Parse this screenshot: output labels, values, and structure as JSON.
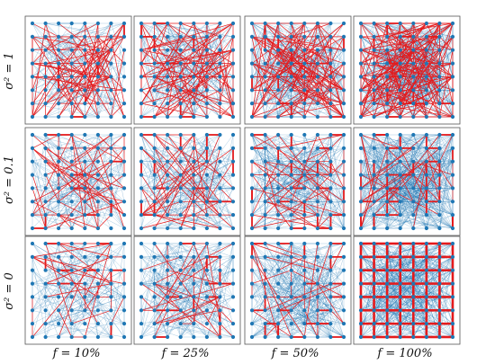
{
  "figure": {
    "row_labels": [
      "σ² = 1",
      "σ² = 0.1",
      "σ² = 0"
    ],
    "col_labels": [
      "f = 10%",
      "f = 25%",
      "f = 50%",
      "f = 100%"
    ],
    "grid_size": 8,
    "colors": {
      "node": "#1f77b4",
      "blue_edge": "#1f77b4",
      "red_edge": "#e41a1c",
      "frame": "#555555"
    },
    "panels": [
      {
        "row": 0,
        "col": 0,
        "sigma2": 1,
        "f": 0.1
      },
      {
        "row": 0,
        "col": 1,
        "sigma2": 1,
        "f": 0.25
      },
      {
        "row": 0,
        "col": 2,
        "sigma2": 1,
        "f": 0.5
      },
      {
        "row": 0,
        "col": 3,
        "sigma2": 1,
        "f": 1.0
      },
      {
        "row": 1,
        "col": 0,
        "sigma2": 0.1,
        "f": 0.1
      },
      {
        "row": 1,
        "col": 1,
        "sigma2": 0.1,
        "f": 0.25
      },
      {
        "row": 1,
        "col": 2,
        "sigma2": 0.1,
        "f": 0.5
      },
      {
        "row": 1,
        "col": 3,
        "sigma2": 0.1,
        "f": 1.0
      },
      {
        "row": 2,
        "col": 0,
        "sigma2": 0,
        "f": 0.1
      },
      {
        "row": 2,
        "col": 1,
        "sigma2": 0,
        "f": 0.25
      },
      {
        "row": 2,
        "col": 2,
        "sigma2": 0,
        "f": 0.5
      },
      {
        "row": 2,
        "col": 3,
        "sigma2": 0,
        "f": 1.0
      }
    ]
  }
}
